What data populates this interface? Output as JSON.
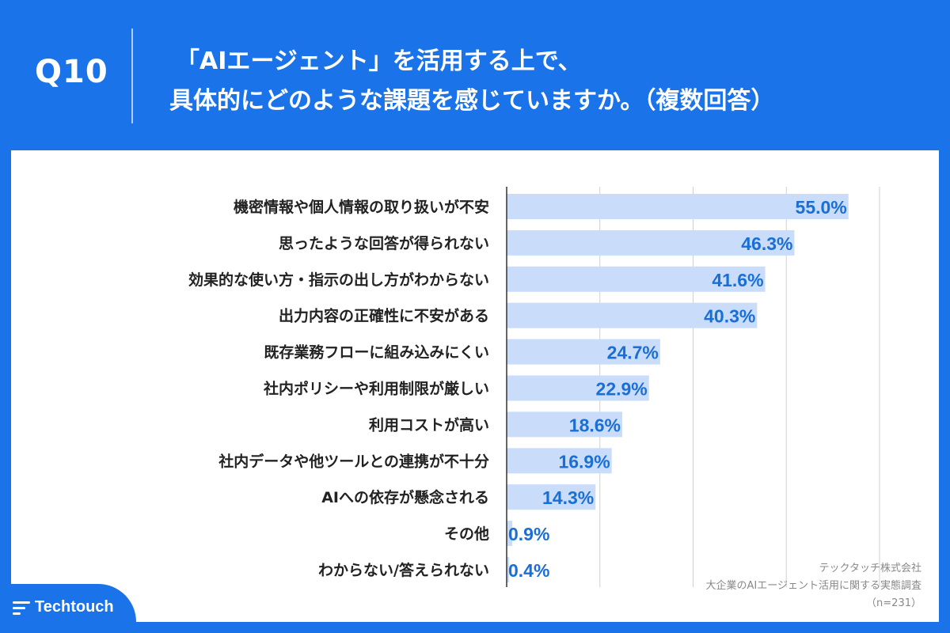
{
  "header": {
    "question_number": "Q10",
    "question_line1": "「AIエージェント」を活用する上で、",
    "question_line2": "具体的にどのような課題を感じていますか。（複数回答）"
  },
  "source": {
    "company": "テックタッチ株式会社",
    "survey": "大企業のAIエージェント活用に関する実態調査",
    "sample": "（n=231）"
  },
  "logo": {
    "text": "Techtouch",
    "icon": "techtouch-logo-icon"
  },
  "colors": {
    "background": "#1a73e8",
    "bar": "#c9dcfa",
    "value_text": "#1a6fd6",
    "label_text": "#222222",
    "grid": "#d0d0d0"
  },
  "chart_data": {
    "type": "bar",
    "orientation": "horizontal",
    "categories": [
      "機密情報や個人情報の取り扱いが不安",
      "思ったような回答が得られない",
      "効果的な使い方・指示の出し方がわからない",
      "出力内容の正確性に不安がある",
      "既存業務フローに組み込みにくい",
      "社内ポリシーや利用制限が厳しい",
      "利用コストが高い",
      "社内データや他ツールとの連携が不十分",
      "AIへの依存が懸念される",
      "その他",
      "わからない/答えられない"
    ],
    "values": [
      55.0,
      46.3,
      41.6,
      40.3,
      24.7,
      22.9,
      18.6,
      16.9,
      14.3,
      0.9,
      0.4
    ],
    "value_labels": [
      "55.0%",
      "46.3%",
      "41.6%",
      "40.3%",
      "24.7%",
      "22.9%",
      "18.6%",
      "16.9%",
      "14.3%",
      "0.9%",
      "0.4%"
    ],
    "xlim": [
      0,
      60
    ],
    "grid_interval": 15,
    "grid": true,
    "legend": false
  }
}
